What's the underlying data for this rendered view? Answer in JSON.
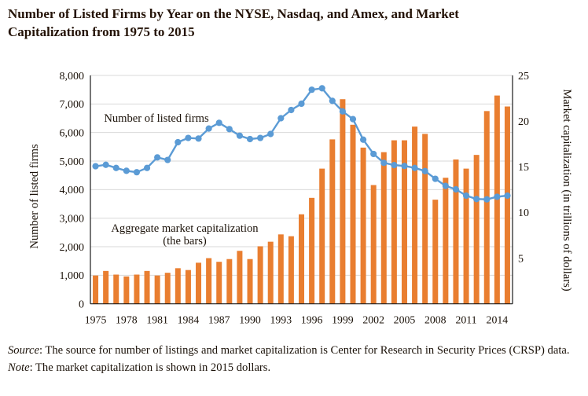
{
  "title": {
    "line1": "Number of Listed Firms by Year on the NYSE, Nasdaq, and Amex, and Market",
    "line2": "Capitalization from 1975 to 2015"
  },
  "chart_data": {
    "type": "bar+line combo",
    "x": [
      1975,
      1976,
      1977,
      1978,
      1979,
      1980,
      1981,
      1982,
      1983,
      1984,
      1985,
      1986,
      1987,
      1988,
      1989,
      1990,
      1991,
      1992,
      1993,
      1994,
      1995,
      1996,
      1997,
      1998,
      1999,
      2000,
      2001,
      2002,
      2003,
      2004,
      2005,
      2006,
      2007,
      2008,
      2009,
      2010,
      2011,
      2012,
      2013,
      2014,
      2015
    ],
    "x_tick_labels": [
      "1975",
      "1978",
      "1981",
      "1984",
      "1987",
      "1990",
      "1993",
      "1996",
      "1999",
      "2002",
      "2005",
      "2008",
      "2011",
      "2014"
    ],
    "series": [
      {
        "name": "Number of listed firms",
        "type": "line",
        "axis": "left",
        "color": "#5b9bd5",
        "values": [
          4820,
          4870,
          4760,
          4660,
          4610,
          4760,
          5130,
          5040,
          5660,
          5810,
          5790,
          6140,
          6340,
          6120,
          5890,
          5770,
          5810,
          5950,
          6500,
          6790,
          7010,
          7500,
          7550,
          7110,
          6740,
          6470,
          5750,
          5250,
          4940,
          4860,
          4830,
          4760,
          4650,
          4380,
          4130,
          4010,
          3790,
          3670,
          3660,
          3750,
          3790
        ]
      },
      {
        "name": "Aggregate market capitalization (the bars)",
        "type": "bar",
        "axis": "right",
        "color": "#e97e30",
        "values": [
          3.1,
          3.6,
          3.2,
          3.0,
          3.2,
          3.6,
          3.1,
          3.4,
          3.9,
          3.7,
          4.5,
          5.0,
          4.6,
          4.9,
          5.8,
          4.9,
          6.3,
          6.8,
          7.6,
          7.4,
          9.8,
          11.6,
          14.8,
          18.0,
          22.4,
          19.6,
          17.1,
          13.0,
          16.6,
          17.9,
          17.9,
          19.4,
          18.6,
          11.4,
          13.8,
          15.8,
          14.8,
          16.3,
          21.1,
          22.8,
          21.6
        ]
      }
    ],
    "left_axis": {
      "label": "Number of listed firms",
      "min": 0,
      "max": 8000,
      "tick_step": 1000,
      "tick_labels": [
        "0",
        "1,000",
        "2,000",
        "3,000",
        "4,000",
        "5,000",
        "6,000",
        "7,000",
        "8,000"
      ]
    },
    "right_axis": {
      "label": "Market capitalization (in trillions of dollars)",
      "min": 0,
      "max": 25,
      "tick_values": [
        5,
        10,
        15,
        20,
        25
      ]
    },
    "annotations": {
      "line_label": "Number of listed firms",
      "bars_label_line1": "Aggregate market capitalization",
      "bars_label_line2": "(the bars)"
    },
    "grid": true,
    "legend_position": "in-plot annotations"
  },
  "notes": {
    "source_label": "Source",
    "source_text": ": The source for number of listings and market capitalization is Center for Research in Security Prices (CRSP) data.",
    "note_label": "Note",
    "note_text": ": The market capitalization is shown in 2015 dollars."
  },
  "colors": {
    "bar": "#e97e30",
    "line": "#5b9bd5",
    "gridline": "#d9d9d9",
    "axis": "#1a1a1a",
    "text": "#1b1209"
  }
}
